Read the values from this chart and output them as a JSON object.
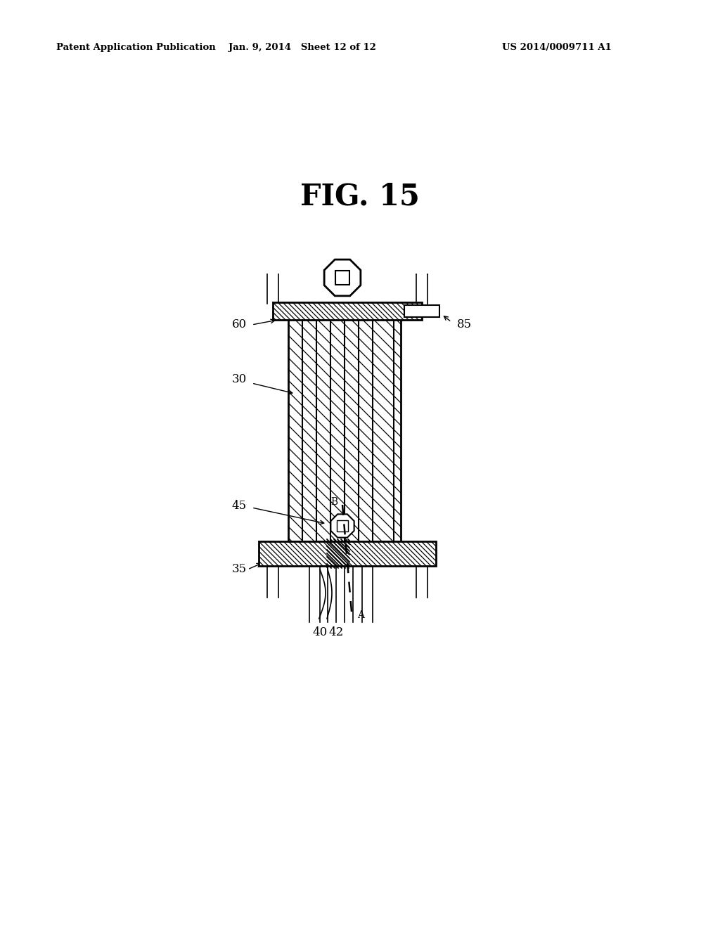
{
  "title": "FIG. 15",
  "header_left": "Patent Application Publication",
  "header_mid": "Jan. 9, 2014   Sheet 12 of 12",
  "header_right": "US 2014/0009711 A1",
  "bg_color": "#ffffff",
  "fg_color": "#000000"
}
